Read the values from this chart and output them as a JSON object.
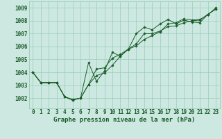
{
  "title": "Graphe pression niveau de la mer (hPa)",
  "bg_color": "#cce8e0",
  "grid_color": "#99ccbb",
  "line_color": "#1a5c2a",
  "marker_color": "#1a5c2a",
  "hours": [
    0,
    1,
    2,
    3,
    4,
    5,
    6,
    7,
    8,
    9,
    10,
    11,
    12,
    13,
    14,
    15,
    16,
    17,
    18,
    19,
    20,
    21,
    22,
    23
  ],
  "series": [
    [
      1004.0,
      1003.2,
      1003.2,
      1003.2,
      1002.1,
      1001.85,
      1002.0,
      1004.75,
      1003.3,
      1004.1,
      1005.55,
      1005.25,
      1005.8,
      1007.0,
      1007.5,
      1007.3,
      1007.75,
      1008.1,
      1007.75,
      1008.05,
      1007.9,
      1007.85,
      1008.5,
      1008.9
    ],
    [
      1004.0,
      1003.2,
      1003.2,
      1003.2,
      1002.1,
      1001.85,
      1002.0,
      1003.05,
      1004.25,
      1004.35,
      1005.1,
      1005.4,
      1005.8,
      1006.2,
      1007.0,
      1007.0,
      1007.2,
      1007.55,
      1007.6,
      1007.85,
      1008.0,
      1008.05,
      1008.5,
      1008.9
    ],
    [
      1004.0,
      1003.2,
      1003.2,
      1003.2,
      1002.1,
      1001.9,
      1002.0,
      1003.05,
      1003.75,
      1003.95,
      1004.55,
      1005.25,
      1005.8,
      1006.05,
      1006.55,
      1006.85,
      1007.15,
      1007.75,
      1007.85,
      1008.15,
      1008.05,
      1008.1,
      1008.45,
      1009.0
    ]
  ],
  "ylim": [
    1001.2,
    1009.5
  ],
  "yticks": [
    1002,
    1003,
    1004,
    1005,
    1006,
    1007,
    1008,
    1009
  ],
  "tick_fontsize": 5.5,
  "xlabel_fontsize": 6.5
}
